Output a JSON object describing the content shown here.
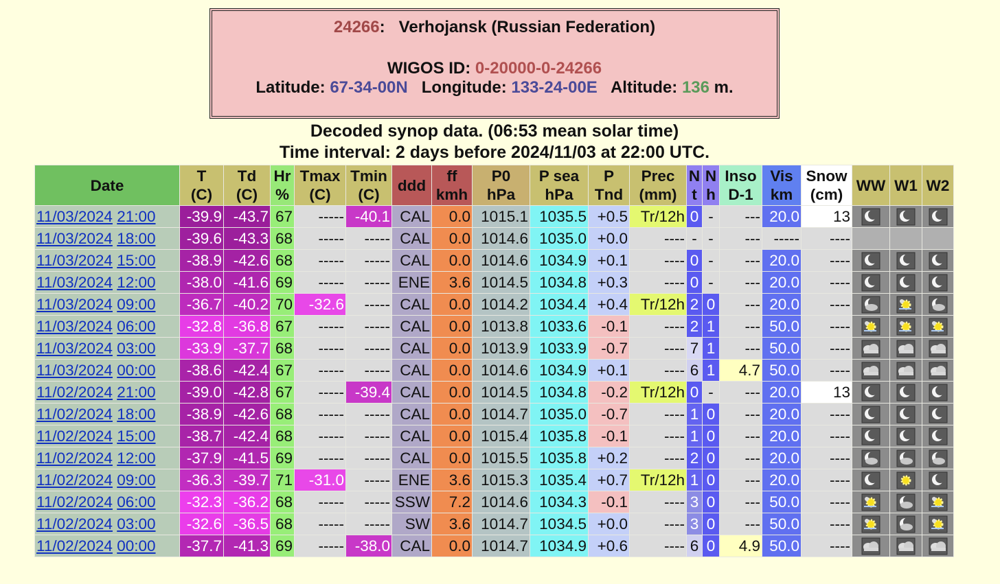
{
  "header": {
    "station_id": "24266",
    "separator": ":",
    "station_name": "Verhojansk (Russian Federation)",
    "wigos_label": "WIGOS ID:",
    "wigos_id": "0-20000-0-24266",
    "latitude_label": "Latitude:",
    "latitude": "67-34-00N",
    "longitude_label": "Longitude:",
    "longitude": "133-24-00E",
    "altitude_label": "Altitude:",
    "altitude": "136",
    "altitude_unit": "m."
  },
  "subtitle": [
    "Decoded synop data. (06:53 mean solar time)",
    "Time interval: 2 days before 2024/11/03 at 22:00 UTC."
  ],
  "table": {
    "columns": [
      [
        "Date"
      ],
      [
        "T",
        "(C)"
      ],
      [
        "Td",
        "(C)"
      ],
      [
        "Hr",
        "%"
      ],
      [
        "Tmax",
        "(C)"
      ],
      [
        "Tmin",
        "(C)"
      ],
      [
        "ddd"
      ],
      [
        "ff",
        "kmh"
      ],
      [
        "P0",
        "hPa"
      ],
      [
        "P sea",
        "hPa"
      ],
      [
        "P",
        "Tnd"
      ],
      [
        "Prec",
        "(mm)"
      ],
      [
        "N",
        "t"
      ],
      [
        "N",
        "h"
      ],
      [
        "Inso",
        "D-1"
      ],
      [
        "Vis",
        "km"
      ],
      [
        "Snow",
        "(cm)"
      ],
      [
        "WW"
      ],
      [
        "W1"
      ],
      [
        "W2"
      ]
    ],
    "rows": [
      [
        "11/03/2024",
        "21:00",
        "-39.9",
        "-43.7",
        "67",
        "-----",
        "-40.1",
        "CAL",
        "0.0",
        "1015.1",
        "1035.5",
        "+0.5",
        "Tr/12h",
        "0",
        "-",
        "---",
        "20.0",
        "13"
      ],
      [
        "11/03/2024",
        "18:00",
        "-39.6",
        "-43.3",
        "68",
        "-----",
        "-----",
        "CAL",
        "0.0",
        "1014.6",
        "1035.0",
        "+0.0",
        "----",
        "-",
        "-",
        "---",
        "-----",
        "----"
      ],
      [
        "11/03/2024",
        "15:00",
        "-38.9",
        "-42.6",
        "68",
        "-----",
        "-----",
        "CAL",
        "0.0",
        "1014.6",
        "1034.9",
        "+0.1",
        "----",
        "0",
        "-",
        "---",
        "20.0",
        "----"
      ],
      [
        "11/03/2024",
        "12:00",
        "-38.0",
        "-41.6",
        "69",
        "-----",
        "-----",
        "ENE",
        "3.6",
        "1014.5",
        "1034.8",
        "+0.3",
        "----",
        "0",
        "-",
        "---",
        "20.0",
        "----"
      ],
      [
        "11/03/2024",
        "09:00",
        "-36.7",
        "-40.2",
        "70",
        "-32.6",
        "-----",
        "CAL",
        "0.0",
        "1014.2",
        "1034.4",
        "+0.4",
        "Tr/12h",
        "2",
        "0",
        "---",
        "20.0",
        "----"
      ],
      [
        "11/03/2024",
        "06:00",
        "-32.8",
        "-36.8",
        "67",
        "-----",
        "-----",
        "CAL",
        "0.0",
        "1013.8",
        "1033.6",
        "-0.1",
        "----",
        "2",
        "1",
        "---",
        "50.0",
        "----"
      ],
      [
        "11/03/2024",
        "03:00",
        "-33.9",
        "-37.7",
        "68",
        "-----",
        "-----",
        "CAL",
        "0.0",
        "1013.9",
        "1033.9",
        "-0.7",
        "----",
        "7",
        "1",
        "---",
        "50.0",
        "----"
      ],
      [
        "11/03/2024",
        "00:00",
        "-38.6",
        "-42.4",
        "67",
        "-----",
        "-----",
        "CAL",
        "0.0",
        "1014.6",
        "1034.9",
        "+0.1",
        "----",
        "6",
        "1",
        "4.7",
        "50.0",
        "----"
      ],
      [
        "11/02/2024",
        "21:00",
        "-39.0",
        "-42.8",
        "67",
        "-----",
        "-39.4",
        "CAL",
        "0.0",
        "1014.5",
        "1034.8",
        "-0.2",
        "Tr/12h",
        "0",
        "-",
        "---",
        "20.0",
        "13"
      ],
      [
        "11/02/2024",
        "18:00",
        "-38.9",
        "-42.6",
        "68",
        "-----",
        "-----",
        "CAL",
        "0.0",
        "1014.7",
        "1035.0",
        "-0.7",
        "----",
        "1",
        "0",
        "---",
        "20.0",
        "----"
      ],
      [
        "11/02/2024",
        "15:00",
        "-38.7",
        "-42.4",
        "68",
        "-----",
        "-----",
        "CAL",
        "0.0",
        "1015.4",
        "1035.8",
        "-0.1",
        "----",
        "1",
        "0",
        "---",
        "20.0",
        "----"
      ],
      [
        "11/02/2024",
        "12:00",
        "-37.9",
        "-41.5",
        "69",
        "-----",
        "-----",
        "CAL",
        "0.0",
        "1015.5",
        "1035.8",
        "+0.2",
        "----",
        "2",
        "0",
        "---",
        "20.0",
        "----"
      ],
      [
        "11/02/2024",
        "09:00",
        "-36.3",
        "-39.7",
        "71",
        "-31.0",
        "-----",
        "ENE",
        "3.6",
        "1015.3",
        "1035.4",
        "+0.7",
        "Tr/12h",
        "1",
        "0",
        "---",
        "20.0",
        "----"
      ],
      [
        "11/02/2024",
        "06:00",
        "-32.3",
        "-36.2",
        "68",
        "-----",
        "-----",
        "SSW",
        "7.2",
        "1014.6",
        "1034.3",
        "-0.1",
        "----",
        "3",
        "0",
        "---",
        "50.0",
        "----"
      ],
      [
        "11/02/2024",
        "03:00",
        "-32.6",
        "-36.5",
        "68",
        "-----",
        "-----",
        "SW",
        "3.6",
        "1014.7",
        "1034.5",
        "+0.0",
        "----",
        "3",
        "0",
        "---",
        "50.0",
        "----"
      ],
      [
        "11/02/2024",
        "00:00",
        "-37.7",
        "-41.3",
        "69",
        "-----",
        "-38.0",
        "CAL",
        "0.0",
        "1014.7",
        "1034.9",
        "+0.6",
        "----",
        "6",
        "0",
        "4.9",
        "50.0",
        "----"
      ]
    ]
  }
}
